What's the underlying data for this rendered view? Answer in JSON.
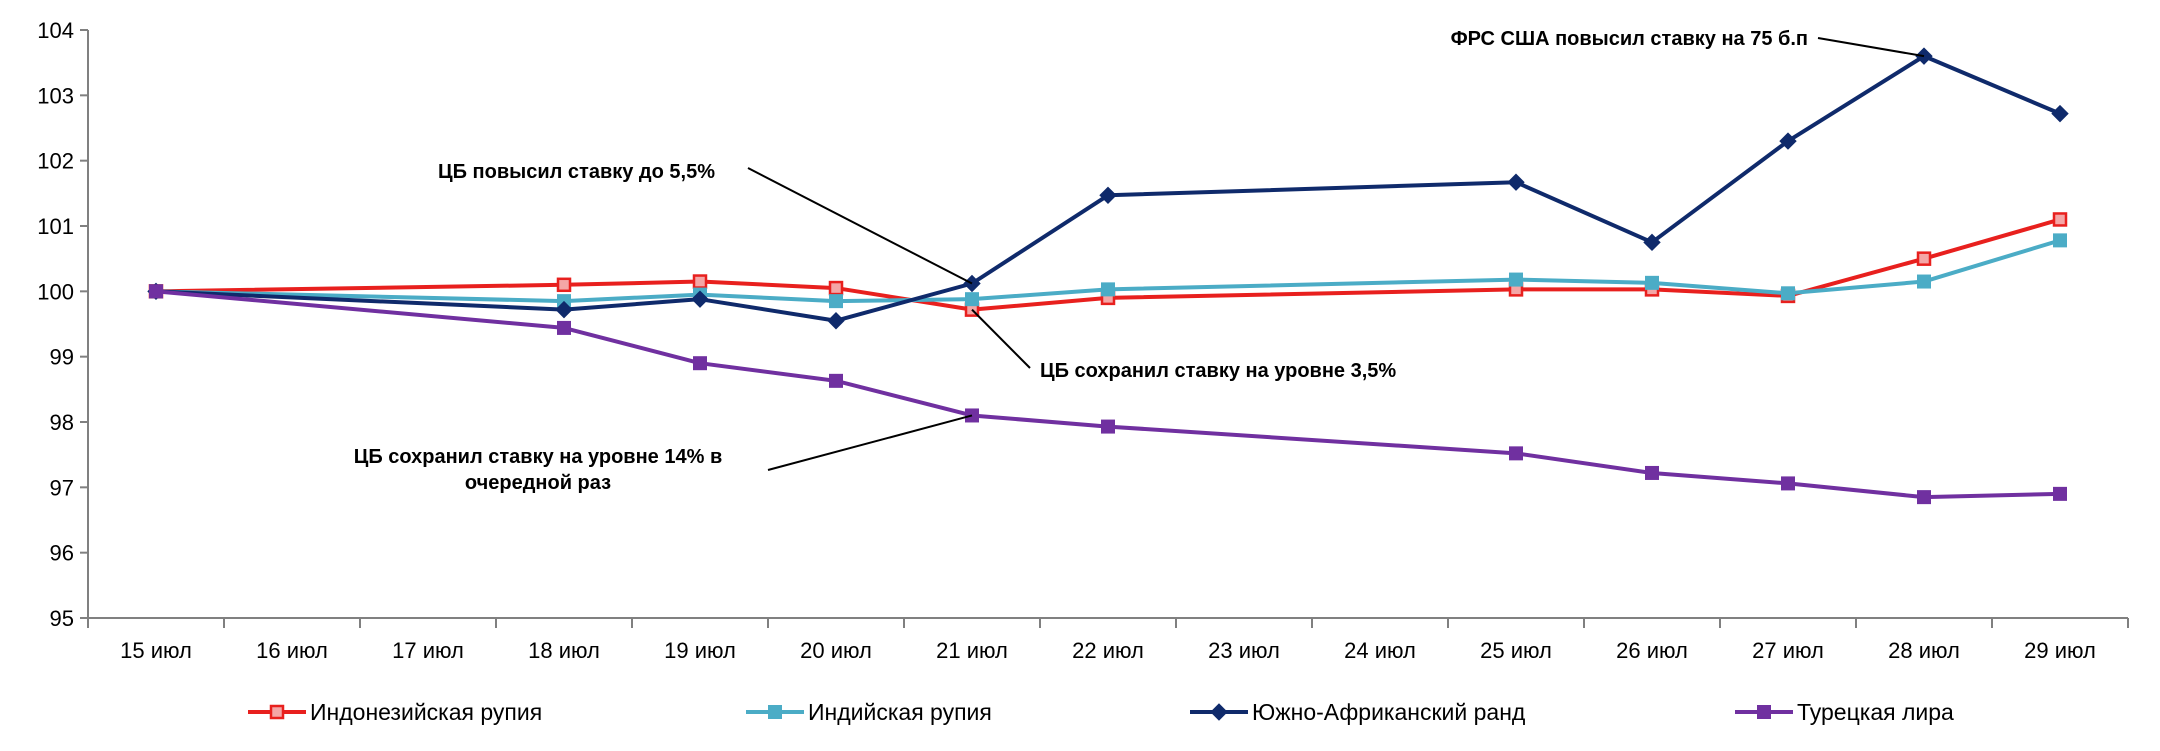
{
  "chart_data": {
    "type": "line",
    "title": "",
    "xlabel": "",
    "ylabel": "",
    "ylim": [
      95,
      104
    ],
    "yticks": [
      95,
      96,
      97,
      98,
      99,
      100,
      101,
      102,
      103,
      104
    ],
    "categories": [
      "15 июл",
      "16 июл",
      "17 июл",
      "18 июл",
      "19 июл",
      "20 июл",
      "21 июл",
      "22 июл",
      "23 июл",
      "24 июл",
      "25 июл",
      "26 июл",
      "27 июл",
      "28 июл",
      "29 июл"
    ],
    "grid": false,
    "legend_position": "bottom",
    "series": [
      {
        "name": "Индонезийская рупия",
        "color": "#e8201e",
        "marker": "square-open",
        "x": [
          "15 июл",
          "18 июл",
          "19 июл",
          "20 июл",
          "21 июл",
          "22 июл",
          "25 июл",
          "26 июл",
          "27 июл",
          "28 июл",
          "29 июл"
        ],
        "values": [
          100.0,
          100.1,
          100.15,
          100.05,
          99.72,
          99.9,
          100.03,
          100.03,
          99.93,
          100.5,
          101.1
        ]
      },
      {
        "name": "Индийская рупия",
        "color": "#4bacc6",
        "marker": "square",
        "x": [
          "15 июл",
          "18 июл",
          "19 июл",
          "20 июл",
          "21 июл",
          "22 июл",
          "25 июл",
          "26 июл",
          "27 июл",
          "28 июл",
          "29 июл"
        ],
        "values": [
          100.0,
          99.85,
          99.95,
          99.85,
          99.88,
          100.03,
          100.18,
          100.13,
          99.97,
          100.15,
          100.78
        ]
      },
      {
        "name": "Южно-Африканский ранд",
        "color": "#0f2a6b",
        "marker": "diamond",
        "x": [
          "15 июл",
          "18 июл",
          "19 июл",
          "20 июл",
          "21 июл",
          "22 июл",
          "25 июл",
          "26 июл",
          "27 июл",
          "28 июл",
          "29 июл"
        ],
        "values": [
          100.0,
          99.72,
          99.88,
          99.55,
          100.12,
          101.47,
          101.67,
          100.75,
          102.3,
          103.6,
          102.72
        ]
      },
      {
        "name": "Турецкая лира",
        "color": "#7030a0",
        "marker": "square",
        "x": [
          "15 июл",
          "18 июл",
          "19 июл",
          "20 июл",
          "21 июл",
          "22 июл",
          "25 июл",
          "26 июл",
          "27 июл",
          "28 июл",
          "29 июл"
        ],
        "values": [
          100.0,
          99.44,
          98.9,
          98.63,
          98.1,
          97.93,
          97.52,
          97.22,
          97.06,
          96.85,
          96.9
        ]
      }
    ],
    "annotations": [
      {
        "lines": [
          "ФРС США повысил ставку на 75 б.п"
        ],
        "target_series": 2,
        "target_x": "28 июл",
        "anchor": "end"
      },
      {
        "lines": [
          "ЦБ повысил ставку до 5,5%"
        ],
        "target_series": 2,
        "target_x": "21 июл",
        "anchor": "end"
      },
      {
        "lines": [
          "ЦБ сохранил ставку на уровне 3,5%"
        ],
        "target_series": 0,
        "target_x": "21 июл",
        "anchor": "start"
      },
      {
        "lines": [
          "ЦБ сохранил ставку на уровне 14% в",
          "очередной раз"
        ],
        "target_series": 3,
        "target_x": "21 июл",
        "anchor": "middle"
      }
    ]
  }
}
